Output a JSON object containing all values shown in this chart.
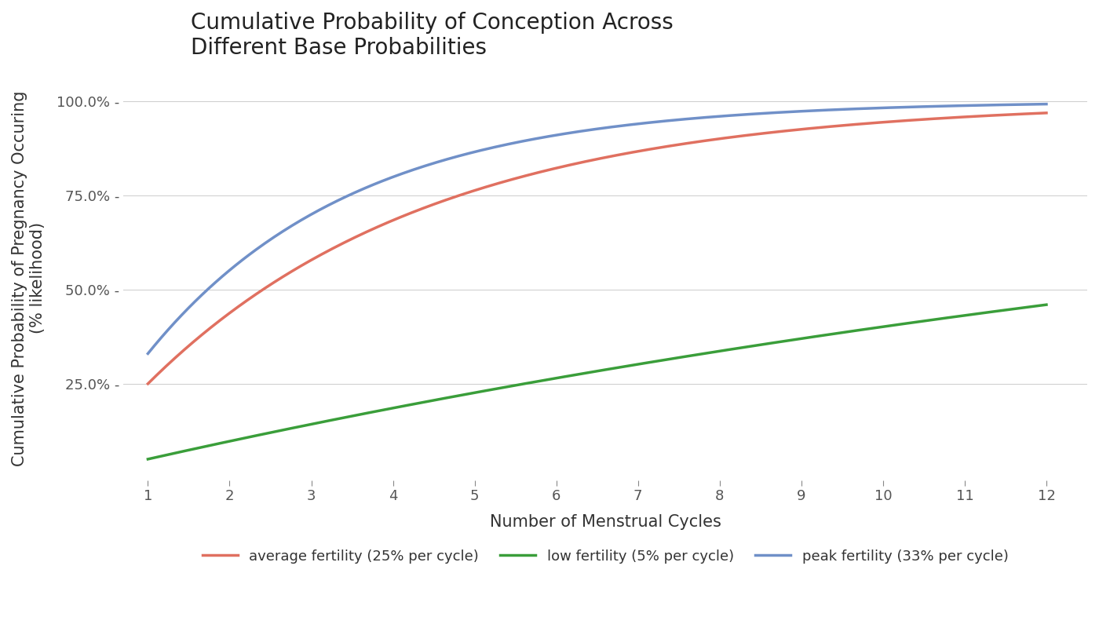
{
  "title": "Cumulative Probability of Conception Across\nDifferent Base Probabilities",
  "xlabel": "Number of Menstrual Cycles",
  "ylabel": "Cumulative Probability of Pregnancy Occuring\n(% likelihood)",
  "series": [
    {
      "label": "average fertility (25% per cycle)",
      "p": 0.25,
      "color": "#E07060",
      "linewidth": 2.5
    },
    {
      "label": "low fertility (5% per cycle)",
      "p": 0.05,
      "color": "#3A9E3A",
      "linewidth": 2.5
    },
    {
      "label": "peak fertility (33% per cycle)",
      "p": 0.33,
      "color": "#7090C8",
      "linewidth": 2.5
    }
  ],
  "xticks": [
    1,
    2,
    3,
    4,
    5,
    6,
    7,
    8,
    9,
    10,
    11,
    12
  ],
  "yticks": [
    0.25,
    0.5,
    0.75,
    1.0
  ],
  "ytick_labels": [
    "25.0% -",
    "50.0% -",
    "75.0% -",
    "100.0% -"
  ],
  "ylim": [
    -0.02,
    1.08
  ],
  "xlim": [
    0.7,
    12.5
  ],
  "background_color": "#FFFFFF",
  "title_fontsize": 20,
  "label_fontsize": 15,
  "tick_fontsize": 13,
  "legend_fontsize": 13,
  "tick_color": "#555555",
  "label_color": "#333333",
  "title_color": "#222222",
  "grid_color": "#CCCCCC",
  "legend_patch_alpha": 0.25
}
